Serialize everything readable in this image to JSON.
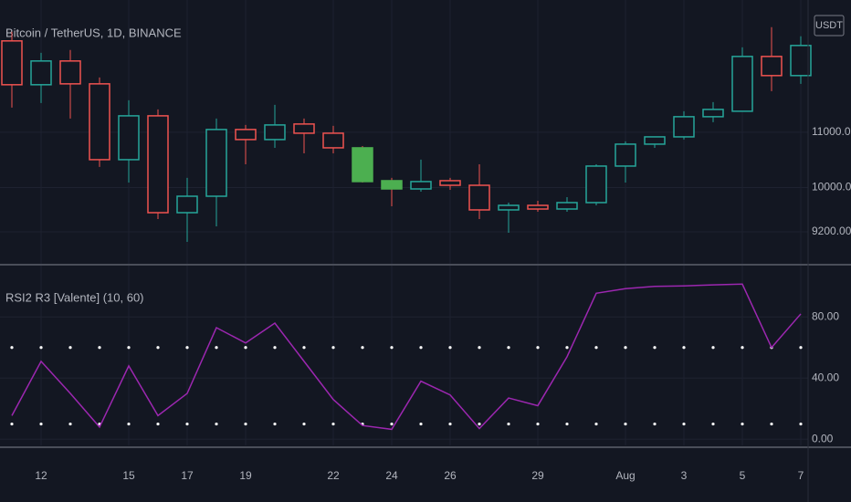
{
  "chart_data": [
    {
      "type": "candlestick",
      "title": "Bitcoin / TetherUS, 1D, BINANCE",
      "currency": "USDT",
      "categories": [
        null,
        "12",
        null,
        null,
        "15",
        null,
        "17",
        null,
        "19",
        null,
        null,
        "22",
        null,
        "24",
        null,
        "26",
        null,
        null,
        "29",
        null,
        null,
        "Aug",
        null,
        "3",
        null,
        "5",
        null,
        "7"
      ],
      "open": [
        12651,
        11859,
        12288,
        11875,
        10505,
        11297,
        9547,
        9844,
        11050,
        10868,
        11149,
        10983,
        10719,
        10125,
        9976,
        10125,
        10042,
        9597,
        9679,
        9613,
        9729,
        10389,
        10785,
        10917,
        11281,
        11380,
        12370,
        12024
      ],
      "high": [
        12816,
        12436,
        12486,
        11991,
        11578,
        11413,
        10175,
        11248,
        11132,
        11495,
        11248,
        11116,
        10752,
        10175,
        10505,
        10175,
        10422,
        9729,
        9762,
        9828,
        10422,
        10835,
        10917,
        11380,
        11545,
        12535,
        12899,
        12734
      ],
      "low": [
        11446,
        11528,
        11248,
        10373,
        10092,
        9432,
        9019,
        9299,
        10422,
        10719,
        10620,
        10620,
        10092,
        9663,
        9927,
        9960,
        9432,
        9184,
        9564,
        9564,
        9679,
        10092,
        10719,
        10868,
        11182,
        11380,
        11743,
        11875
      ],
      "close": [
        11859,
        12288,
        11875,
        10505,
        11297,
        9547,
        9844,
        11050,
        10868,
        11132,
        10983,
        10719,
        10109,
        9976,
        10109,
        10042,
        9597,
        9679,
        9613,
        9729,
        10389,
        10785,
        10917,
        11281,
        11413,
        12370,
        12024,
        12568
      ],
      "up_color": "#26a69a",
      "down_color": "#ef5350",
      "highlight": {
        "indices": [
          12,
          13
        ],
        "color": "#4caf50"
      },
      "ylim": [
        8640,
        13390
      ],
      "yticks": [
        {
          "value": 9200,
          "label": "9200.00"
        },
        {
          "value": 10000,
          "label": "10000.00"
        },
        {
          "value": 11000,
          "label": "11000.00"
        }
      ],
      "grid": true
    },
    {
      "type": "line",
      "title": "RSI2 R3 [Valente] (10, 60)",
      "color": "#9c27b0",
      "values": [
        15.5,
        51,
        30,
        8,
        48,
        15.5,
        30,
        73,
        63,
        76,
        51,
        26,
        9,
        6.5,
        38,
        29,
        7,
        27,
        22,
        54,
        95.5,
        98.5,
        100,
        100.3,
        101,
        101.5,
        60,
        82
      ],
      "levels": [
        10,
        60
      ],
      "level_color": "#ffffff",
      "ylim": [
        -4,
        113
      ],
      "yticks": [
        {
          "value": 0,
          "label": "0.00"
        },
        {
          "value": 40,
          "label": "40.00"
        },
        {
          "value": 80,
          "label": "80.00"
        }
      ],
      "grid": true
    }
  ]
}
